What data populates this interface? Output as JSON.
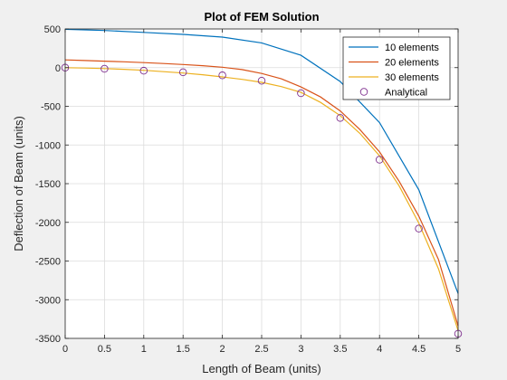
{
  "chart_data": {
    "type": "line",
    "title": "Plot of FEM Solution",
    "xlabel": "Length of Beam (units)",
    "ylabel": "Deflection of Beam (units)",
    "xlim": [
      0,
      5
    ],
    "ylim": [
      -3500,
      500
    ],
    "xticks": [
      "0",
      "0.5",
      "1",
      "1.5",
      "2",
      "2.5",
      "3",
      "3.5",
      "4",
      "4.5",
      "5"
    ],
    "yticks": [
      "500",
      "0",
      "-500",
      "-1000",
      "-1500",
      "-2000",
      "-2500",
      "-3000",
      "-3500"
    ],
    "grid": true,
    "legend_position": "top-right",
    "series": [
      {
        "name": "10 elements",
        "style": "line",
        "color": "#0072BD",
        "x": [
          0,
          0.5,
          1,
          1.5,
          2,
          2.5,
          3,
          3.5,
          4,
          4.5,
          5
        ],
        "y": [
          495,
          480,
          455,
          430,
          395,
          320,
          160,
          -180,
          -710,
          -1580,
          -2920
        ]
      },
      {
        "name": "20 elements",
        "style": "line",
        "color": "#D95319",
        "x": [
          0,
          0.25,
          0.5,
          0.75,
          1,
          1.25,
          1.5,
          1.75,
          2,
          2.25,
          2.5,
          2.75,
          3,
          3.25,
          3.5,
          3.75,
          4,
          4.25,
          4.5,
          4.75,
          5
        ],
        "y": [
          100,
          92,
          84,
          75,
          65,
          53,
          40,
          25,
          5,
          -25,
          -75,
          -145,
          -250,
          -380,
          -560,
          -800,
          -1090,
          -1470,
          -1920,
          -2480,
          -3340
        ]
      },
      {
        "name": "30 elements",
        "style": "line",
        "color": "#EDB120",
        "x": [
          0,
          0.25,
          0.5,
          0.75,
          1,
          1.25,
          1.5,
          1.75,
          2,
          2.25,
          2.5,
          2.75,
          3,
          3.25,
          3.5,
          3.75,
          4,
          4.25,
          4.5,
          4.75,
          5
        ],
        "y": [
          0,
          -5,
          -12,
          -22,
          -35,
          -52,
          -70,
          -92,
          -120,
          -152,
          -190,
          -245,
          -320,
          -450,
          -620,
          -850,
          -1140,
          -1530,
          -2010,
          -2600,
          -3400
        ]
      },
      {
        "name": "Analytical",
        "style": "markers",
        "color": "#7E2F8E",
        "x": [
          0,
          0.5,
          1,
          1.5,
          2,
          2.5,
          3,
          3.5,
          4,
          4.5,
          5
        ],
        "y": [
          0,
          -15,
          -40,
          -60,
          -100,
          -170,
          -330,
          -650,
          -1190,
          -2080,
          -3440
        ]
      }
    ]
  }
}
